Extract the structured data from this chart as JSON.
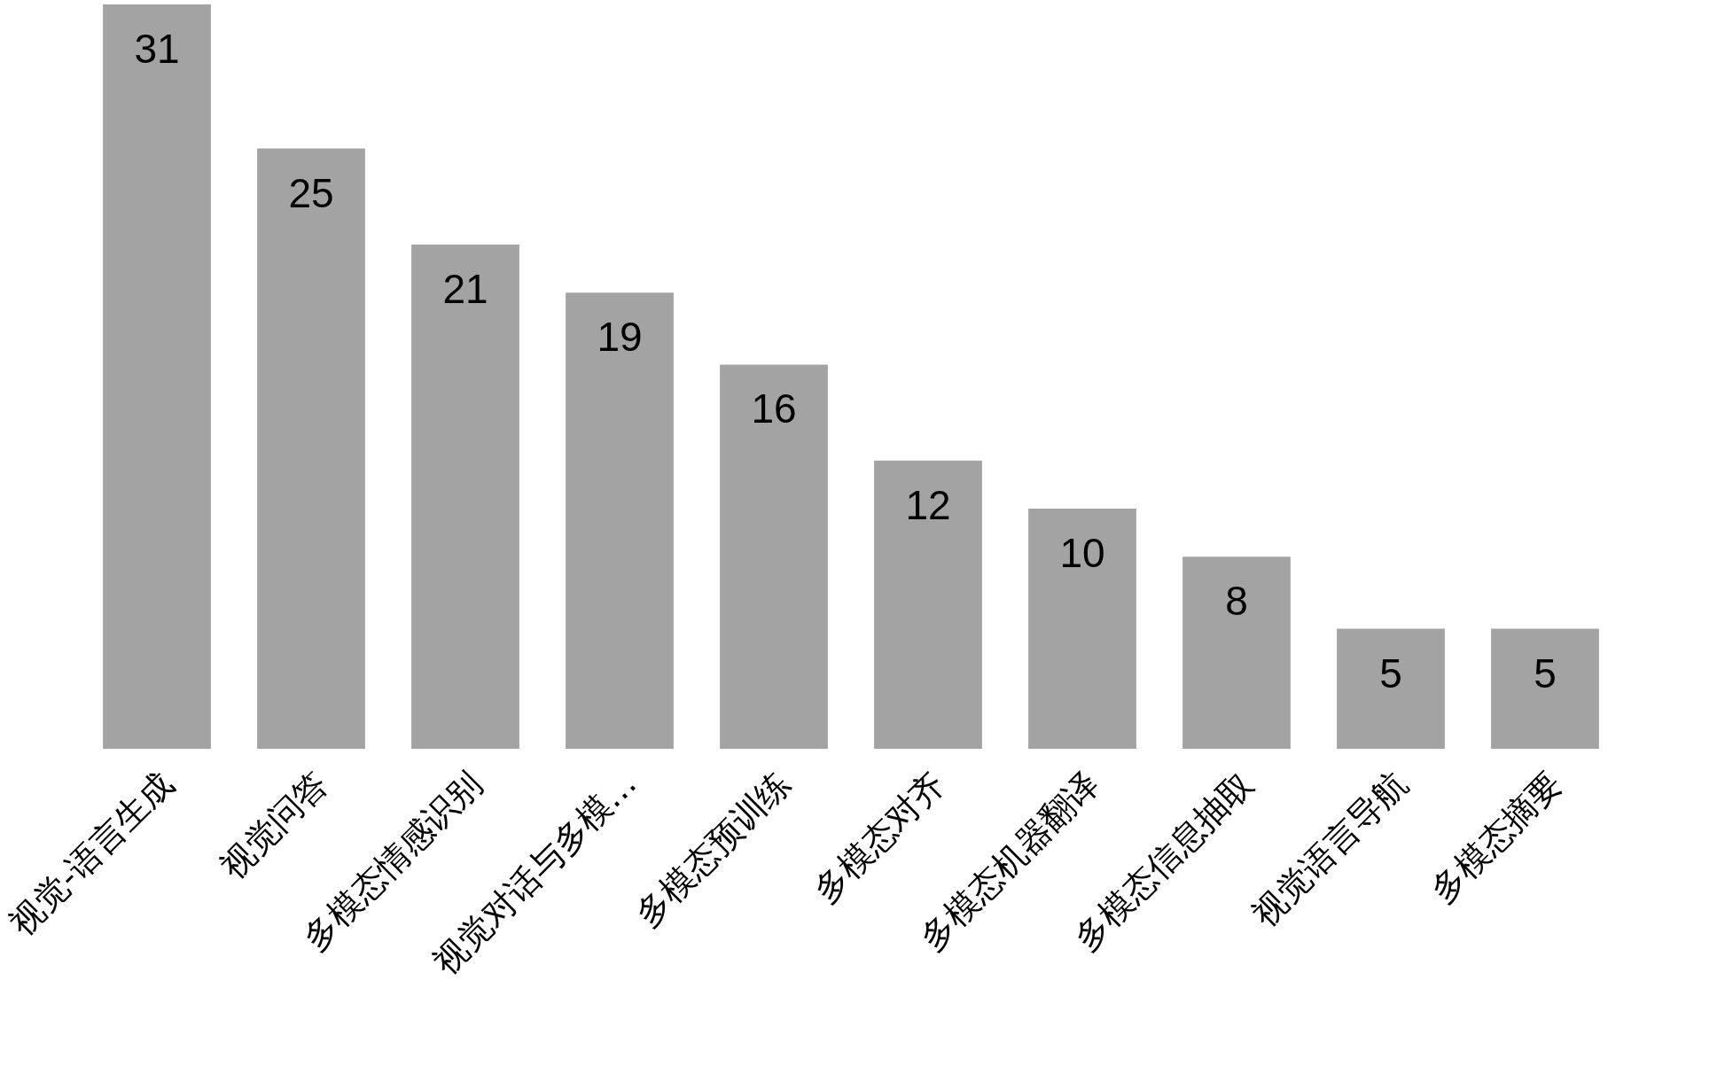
{
  "chart_data": {
    "type": "bar",
    "categories": [
      "视觉-语言生成",
      "视觉问答",
      "多模态情感识别",
      "视觉对话与多模…",
      "多模态预训练",
      "多模态对齐",
      "多模态机器翻译",
      "多模态信息抽取",
      "视觉语言导航",
      "多模态摘要"
    ],
    "values": [
      31,
      25,
      21,
      19,
      16,
      12,
      10,
      8,
      5,
      5
    ],
    "color": "#a3a3a3",
    "data_labels": true
  }
}
